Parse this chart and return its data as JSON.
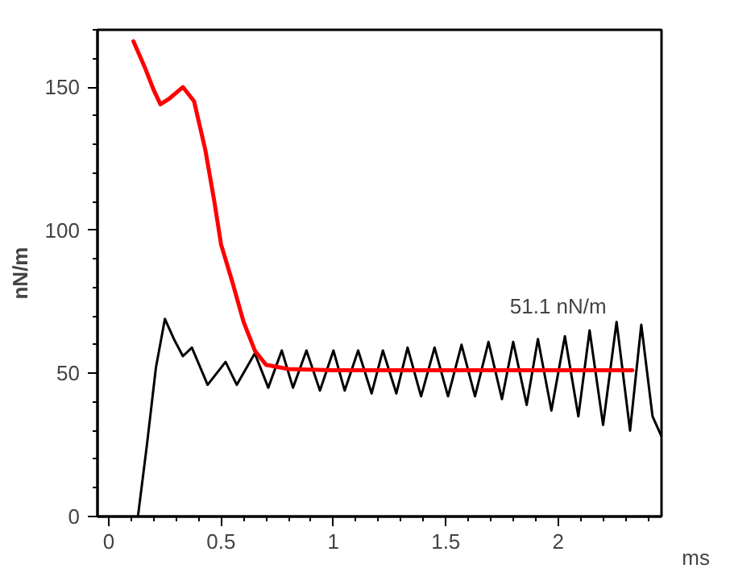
{
  "chart_data": {
    "type": "line",
    "xlabel": "ms",
    "ylabel": "nN/m",
    "xlim": [
      -0.05,
      2.46
    ],
    "ylim": [
      0,
      170
    ],
    "xticks": [
      0,
      0.5,
      1,
      1.5,
      2
    ],
    "yticks": [
      0,
      50,
      100,
      150
    ],
    "grid": false,
    "line_style": "solid",
    "marker": "none",
    "annotations": [
      {
        "text": "51.1 nN/m",
        "x": 2.0,
        "y": 51.1
      }
    ],
    "series": [
      {
        "color": "#000000",
        "x": [
          0.13,
          0.17,
          0.21,
          0.25,
          0.29,
          0.33,
          0.37,
          0.44,
          0.52,
          0.57,
          0.65,
          0.71,
          0.77,
          0.82,
          0.88,
          0.94,
          1.0,
          1.05,
          1.11,
          1.17,
          1.22,
          1.28,
          1.33,
          1.39,
          1.45,
          1.51,
          1.57,
          1.63,
          1.69,
          1.75,
          1.8,
          1.86,
          1.91,
          1.97,
          2.03,
          2.09,
          2.14,
          2.2,
          2.26,
          2.32,
          2.37,
          2.42,
          2.46
        ],
        "values": [
          0,
          25,
          52,
          69,
          62,
          56,
          59,
          46,
          54,
          46,
          57,
          45,
          58,
          45,
          58,
          44,
          58,
          44,
          58,
          43,
          58,
          43,
          59,
          42,
          59,
          42,
          60,
          42,
          61,
          41,
          61,
          39,
          62,
          37,
          63,
          35,
          65,
          32,
          68,
          30,
          67,
          35,
          28
        ]
      },
      {
        "color": "#ff0000",
        "x": [
          0.11,
          0.16,
          0.2,
          0.23,
          0.27,
          0.33,
          0.38,
          0.43,
          0.47,
          0.5,
          0.55,
          0.6,
          0.65,
          0.7,
          0.8,
          0.9,
          1.0,
          1.5,
          2.0,
          2.33
        ],
        "values": [
          166,
          157,
          149,
          144,
          146,
          150,
          145,
          128,
          110,
          95,
          82,
          68,
          58,
          53,
          51.5,
          51.3,
          51.1,
          51.1,
          51.1,
          51.1
        ]
      }
    ]
  }
}
